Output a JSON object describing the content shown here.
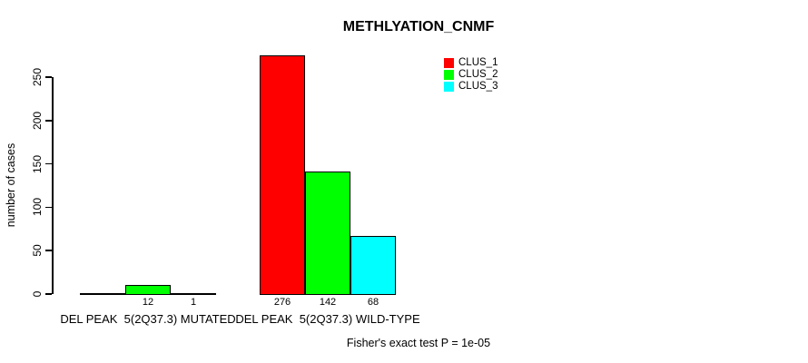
{
  "chart_data": {
    "type": "bar",
    "title": "METHLYATION_CNMF",
    "ylabel": "number of cases",
    "xlabel": "",
    "ylim": [
      0,
      250
    ],
    "y_ticks": [
      0,
      50,
      100,
      150,
      200,
      250
    ],
    "grid": false,
    "legend_position": "top-right",
    "categories": [
      "DEL PEAK  5(2Q37.3) MUTATED",
      "DEL PEAK  5(2Q37.3) WILD-TYPE"
    ],
    "series": [
      {
        "name": "CLUS_1",
        "color": "#ff0000",
        "values": [
          0,
          276
        ]
      },
      {
        "name": "CLUS_2",
        "color": "#00ff00",
        "values": [
          12,
          142
        ]
      },
      {
        "name": "CLUS_3",
        "color": "#00ffff",
        "values": [
          1,
          68
        ]
      }
    ],
    "bar_value_labels": [
      [
        "",
        "12",
        "1"
      ],
      [
        "276",
        "142",
        "68"
      ]
    ],
    "annotation": "Fisher's exact test P = 1e-05"
  },
  "colors": {
    "axis": "#000000",
    "background": "#ffffff",
    "bar_border": "#000000"
  }
}
